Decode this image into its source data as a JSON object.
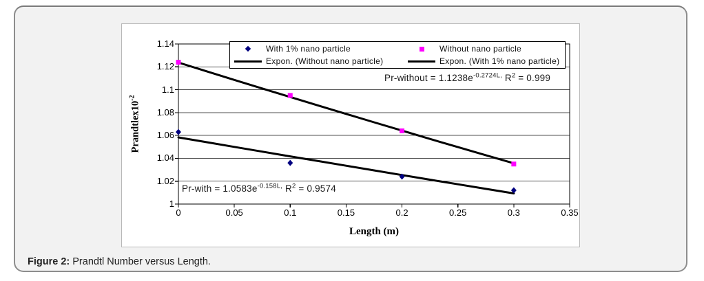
{
  "figure_caption": {
    "label": "Figure 2:",
    "text": " Prandtl Number versus Length."
  },
  "chart_data": {
    "type": "scatter",
    "title": "",
    "xlabel": "Length (m)",
    "ylabel_base": "Prandtlex10",
    "ylabel_exponent": "-2",
    "xlim": [
      0,
      0.35
    ],
    "ylim": [
      1,
      1.14
    ],
    "x_ticks": [
      0,
      0.05,
      0.1,
      0.15,
      0.2,
      0.25,
      0.3,
      0.35
    ],
    "x_tick_labels": [
      "0",
      "0.05",
      "0.1",
      "0.15",
      "0.2",
      "0.25",
      "0.3",
      "0.35"
    ],
    "y_ticks": [
      1,
      1.02,
      1.04,
      1.06,
      1.08,
      1.1,
      1.12,
      1.14
    ],
    "y_tick_labels": [
      "1",
      "1.02",
      "1.04",
      "1.06",
      "1.08",
      "1.1",
      "1.12",
      "1.14"
    ],
    "grid": true,
    "series": [
      {
        "name": "With 1% nano particle",
        "marker": "diamond",
        "color": "#000080",
        "x": [
          0,
          0.1,
          0.2,
          0.3
        ],
        "y": [
          1.063,
          1.036,
          1.024,
          1.012
        ]
      },
      {
        "name": "Without nano particle",
        "marker": "square",
        "color": "#ff00ff",
        "x": [
          0,
          0.1,
          0.2,
          0.3
        ],
        "y": [
          1.124,
          1.095,
          1.064,
          1.035
        ]
      }
    ],
    "trendlines": [
      {
        "name": "Expon. (Without nano particle)",
        "equation": "Pr-without = 1.1238e^(-0.2724L)",
        "a": 1.1238,
        "b": -0.2724,
        "r_squared": 0.999,
        "x_range": [
          0,
          0.3
        ],
        "color": "#000000"
      },
      {
        "name": "Expon. (With 1% nano particle)",
        "equation": "Pr-with = 1.0583e^(-0.158L)",
        "a": 1.0583,
        "b": -0.158,
        "r_squared": 0.9574,
        "x_range": [
          0,
          0.3
        ],
        "color": "#000000"
      }
    ],
    "legend": {
      "position": "top-center",
      "entries": [
        {
          "label": "With 1% nano particle",
          "symbol": "diamond",
          "color": "#000080"
        },
        {
          "label": "Without nano particle",
          "symbol": "square",
          "color": "#ff00ff"
        },
        {
          "label": "Expon. (Without nano particle)",
          "symbol": "line",
          "color": "#000000"
        },
        {
          "label": "Expon. (With 1% nano particle)",
          "symbol": "line",
          "color": "#000000"
        }
      ]
    },
    "annotations": [
      {
        "id": "pr-without",
        "prefix": "Pr-without = 1.1238e",
        "exponent": "-0.2724L,",
        "mid": " R",
        "sup2": "2",
        "suffix": " = 0.999"
      },
      {
        "id": "pr-with",
        "prefix": "Pr-with = 1.0583e",
        "exponent": "-0.158L,",
        "mid": " R",
        "sup2": "2",
        "suffix": " = 0.9574"
      }
    ]
  },
  "colors": {
    "card_bg": "#f2f2f2",
    "card_border": "#8d8d8d",
    "chart_bg": "#ffffff",
    "gridline": "#4f4f4f",
    "axis": "#000000",
    "trendline": "#000000",
    "with_marker": "#000080",
    "without_marker": "#ff00ff"
  }
}
